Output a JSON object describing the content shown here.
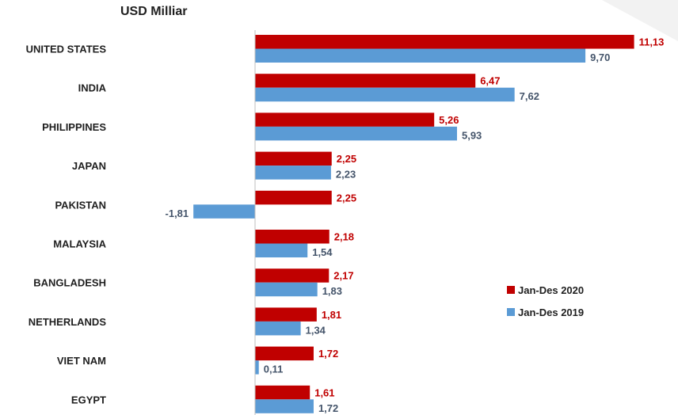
{
  "unit_label": "USD Milliar",
  "colors": {
    "series_2020": "#c00000",
    "series_2019": "#5b9bd5",
    "label_2019": "#44546a"
  },
  "legend": [
    {
      "name": "Jan-Des 2020",
      "color": "#c00000"
    },
    {
      "name": "Jan-Des 2019",
      "color": "#5b9bd5"
    }
  ],
  "chart_data": {
    "type": "bar",
    "orientation": "horizontal",
    "title": "",
    "unit": "USD Milliar",
    "categories": [
      "UNITED STATES",
      "INDIA",
      "PHILIPPINES",
      "JAPAN",
      "PAKISTAN",
      "MALAYSIA",
      "BANGLADESH",
      "NETHERLANDS",
      "VIET NAM",
      "EGYPT"
    ],
    "series": [
      {
        "name": "Jan-Des 2020",
        "values": [
          11.13,
          6.47,
          5.26,
          2.25,
          2.25,
          2.18,
          2.17,
          1.81,
          1.72,
          1.61
        ],
        "labels": [
          "11,13",
          "6,47",
          "5,26",
          "2,25",
          "2,25",
          "2,18",
          "2,17",
          "1,81",
          "1,72",
          "1,61"
        ]
      },
      {
        "name": "Jan-Des 2019",
        "values": [
          9.7,
          7.62,
          5.93,
          2.23,
          -1.81,
          1.54,
          1.83,
          1.34,
          0.11,
          1.72
        ],
        "labels": [
          "9,70",
          "7,62",
          "5,93",
          "2,23",
          "-1,81",
          "1,54",
          "1,83",
          "1,34",
          "0,11",
          "1,72"
        ]
      }
    ],
    "grid": false,
    "legend_position": "right"
  }
}
